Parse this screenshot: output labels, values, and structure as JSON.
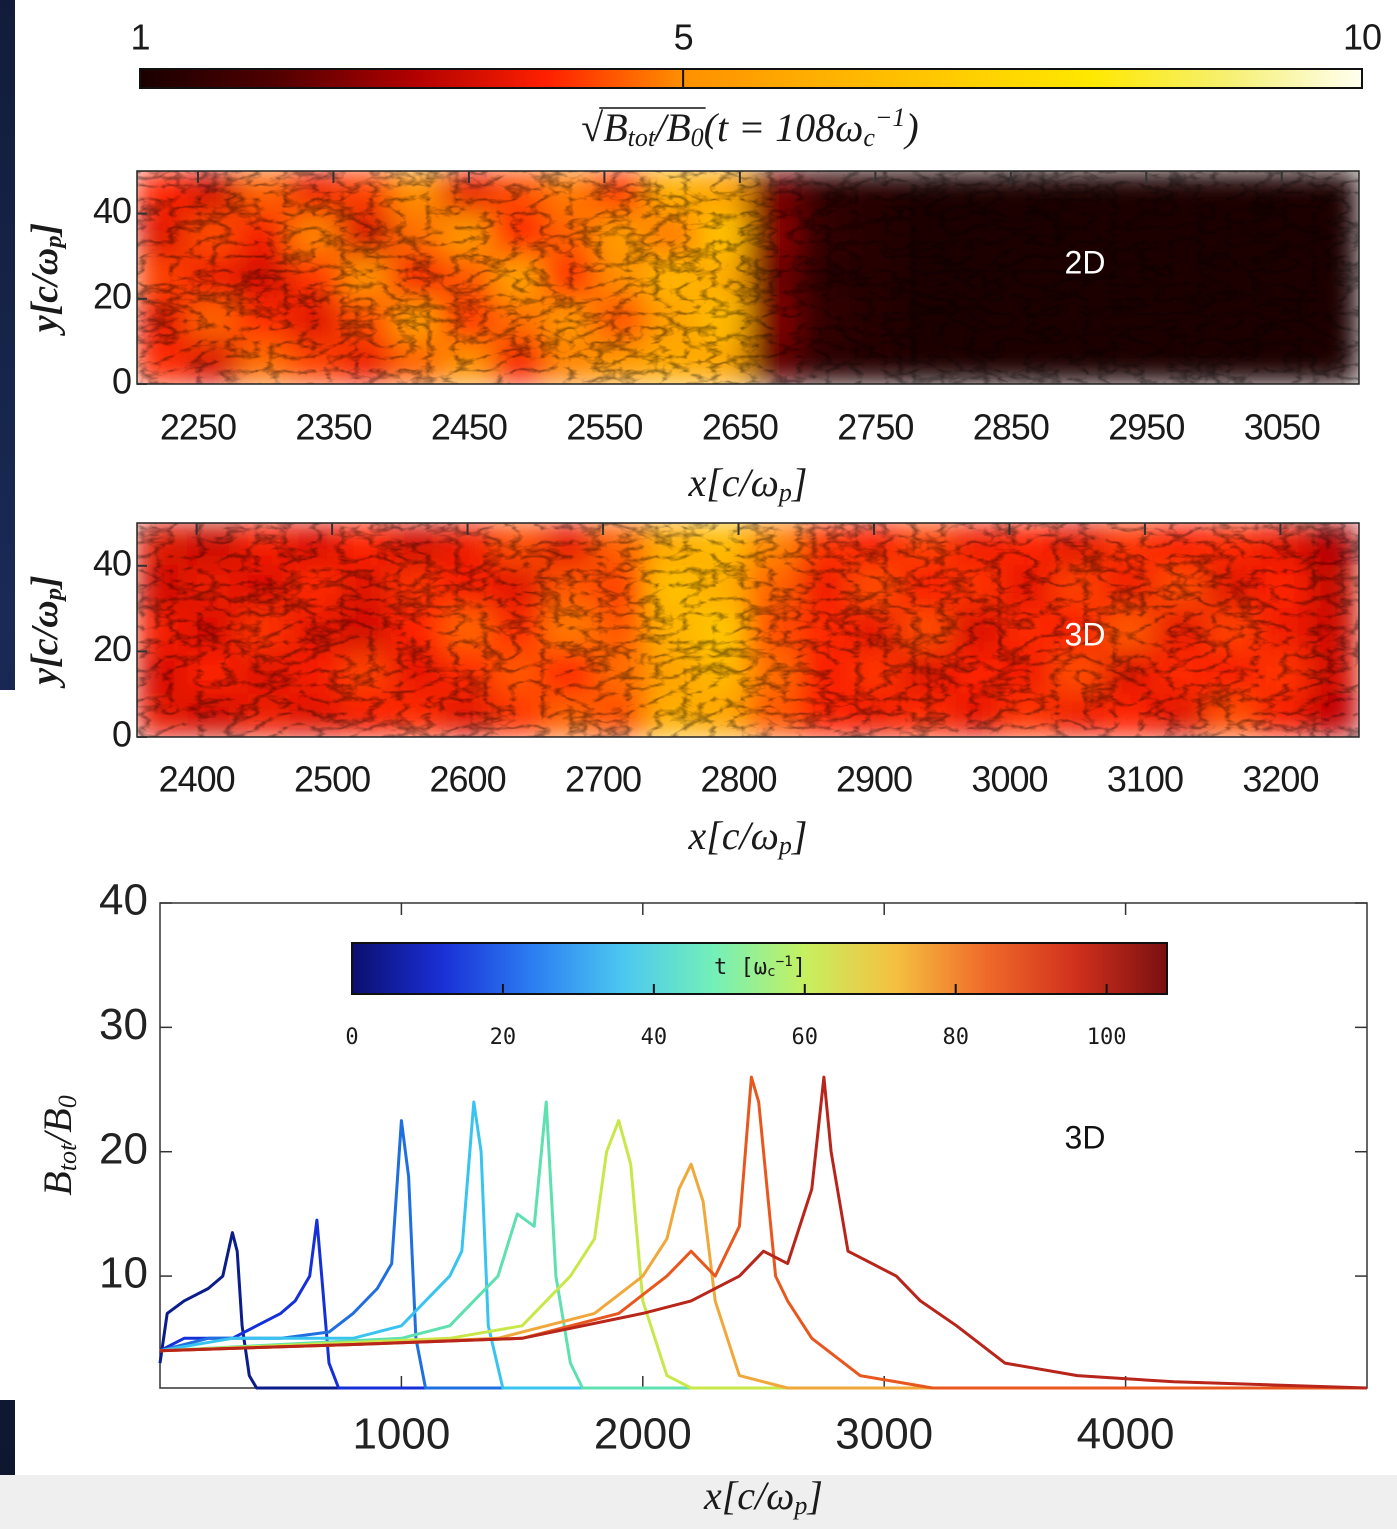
{
  "chart_data": [
    {
      "type": "heatmap",
      "annotation": "2D",
      "xlim": [
        2205,
        3107
      ],
      "ylim": [
        0,
        50
      ],
      "xticks": [
        2250,
        2350,
        2450,
        2550,
        2650,
        2750,
        2850,
        2950,
        3050
      ],
      "yticks": [
        0,
        20,
        40
      ],
      "xlabel": [
        "x[c/ω",
        {
          "sub": "p"
        },
        "]"
      ],
      "ylabel": [
        "y[c/ω",
        {
          "sub": "p"
        },
        "]"
      ],
      "z": [
        [
          4.0,
          3.4,
          4.6,
          3.8,
          4.3,
          5.0,
          3.7,
          4.4,
          4.8,
          4.2,
          6.0,
          5.6,
          2.4,
          1.4,
          1.2,
          1.1,
          1.1,
          1.1,
          1.1,
          1.1,
          1.1,
          1.1,
          1.1,
          1.1
        ],
        [
          3.6,
          4.4,
          3.9,
          4.9,
          3.5,
          4.7,
          5.3,
          4.0,
          4.6,
          5.4,
          4.8,
          6.6,
          2.6,
          1.4,
          1.2,
          1.1,
          1.1,
          1.1,
          1.1,
          1.1,
          1.1,
          1.1,
          1.1,
          1.1
        ],
        [
          4.3,
          3.8,
          3.4,
          4.2,
          5.1,
          3.9,
          4.5,
          5.6,
          4.1,
          5.0,
          6.2,
          5.8,
          2.3,
          1.3,
          1.2,
          1.1,
          1.1,
          1.1,
          1.1,
          1.1,
          1.1,
          1.1,
          1.1,
          1.1
        ],
        [
          3.7,
          4.6,
          4.1,
          3.6,
          4.4,
          5.4,
          4.2,
          4.7,
          5.2,
          4.4,
          5.5,
          6.4,
          2.5,
          1.4,
          1.2,
          1.1,
          1.1,
          1.1,
          1.1,
          1.1,
          1.1,
          1.1,
          1.1,
          1.1
        ],
        [
          4.1,
          3.5,
          4.7,
          4.3,
          3.8,
          4.6,
          5.1,
          3.9,
          4.9,
          5.3,
          5.8,
          5.7,
          2.2,
          1.3,
          1.2,
          1.1,
          1.1,
          1.1,
          1.1,
          1.1,
          1.1,
          1.1,
          1.1,
          1.1
        ]
      ],
      "colorbar": {
        "lim": [
          1,
          10
        ],
        "ticks": [
          1,
          5,
          10
        ],
        "colors": [
          "#1a0000",
          "#500000",
          "#b00000",
          "#ff2000",
          "#ff9000",
          "#ffb000",
          "#ffcc00",
          "#ffe800",
          "#f6f070",
          "#fffff0"
        ],
        "label": [
          "√",
          "B",
          {
            "sub": "tot"
          },
          "/B",
          {
            "sub": "0"
          },
          "(t = 108ω",
          {
            "sub": "c"
          },
          {
            "sup": "−1"
          },
          ")"
        ]
      }
    },
    {
      "type": "heatmap",
      "annotation": "3D",
      "xlim": [
        2356,
        3258
      ],
      "ylim": [
        0,
        50
      ],
      "xticks": [
        2400,
        2500,
        2600,
        2700,
        2800,
        2900,
        3000,
        3100,
        3200
      ],
      "yticks": [
        0,
        20,
        40
      ],
      "xlabel": [
        "x[c/ω",
        {
          "sub": "p"
        },
        "]"
      ],
      "ylabel": [
        "y[c/ω",
        {
          "sub": "p"
        },
        "]"
      ],
      "z": [
        [
          3.6,
          3.3,
          3.9,
          3.5,
          4.0,
          3.4,
          3.8,
          4.4,
          3.7,
          4.6,
          5.8,
          6.4,
          4.9,
          4.2,
          3.9,
          4.3,
          3.8,
          4.0,
          3.6,
          4.2,
          3.9,
          4.1,
          3.7,
          3.0
        ],
        [
          3.4,
          3.8,
          3.5,
          4.1,
          3.6,
          4.2,
          3.9,
          3.6,
          4.5,
          4.3,
          6.6,
          5.9,
          4.6,
          3.8,
          4.4,
          3.9,
          4.2,
          3.7,
          4.3,
          3.8,
          4.4,
          3.6,
          4.0,
          3.3
        ],
        [
          3.9,
          3.5,
          4.2,
          3.7,
          3.4,
          4.0,
          4.6,
          4.1,
          4.8,
          4.5,
          6.1,
          6.8,
          4.4,
          4.1,
          3.7,
          4.4,
          3.5,
          4.1,
          3.9,
          4.5,
          3.7,
          4.3,
          3.8,
          3.4
        ],
        [
          3.5,
          4.0,
          3.6,
          3.9,
          4.3,
          3.7,
          4.1,
          4.5,
          4.0,
          4.7,
          5.6,
          6.3,
          4.7,
          3.9,
          4.2,
          3.6,
          4.0,
          3.8,
          4.4,
          3.6,
          4.1,
          3.9,
          4.2,
          3.5
        ],
        [
          3.7,
          3.4,
          3.8,
          3.6,
          3.9,
          4.1,
          3.6,
          4.2,
          4.6,
          4.4,
          6.0,
          5.7,
          4.5,
          4.0,
          3.8,
          4.1,
          3.7,
          4.2,
          3.8,
          4.0,
          3.6,
          4.4,
          3.9,
          3.2
        ]
      ]
    },
    {
      "type": "line",
      "annotation": "3D",
      "xlim": [
        0,
        5000
      ],
      "ylim": [
        1,
        40
      ],
      "xticks": [
        1000,
        2000,
        3000,
        4000
      ],
      "yticks": [
        10,
        20,
        30,
        40
      ],
      "xlabel": [
        "x[c/ω",
        {
          "sub": "p"
        },
        "]"
      ],
      "ylabel": [
        "B",
        {
          "sub": "tot"
        },
        "/B",
        {
          "sub": "0"
        }
      ],
      "colorbar": {
        "lim": [
          0,
          108
        ],
        "ticks": [
          0,
          20,
          40,
          60,
          80,
          100
        ],
        "colors": [
          "#0a0f6e",
          "#1a2fd6",
          "#2c7ef2",
          "#4cc8f0",
          "#74f0b8",
          "#c6f060",
          "#f5c040",
          "#ef6a2a",
          "#d0301c",
          "#7a1010"
        ],
        "label": [
          "t [ω",
          {
            "sub": "c"
          },
          {
            "sup": "−1"
          },
          "]"
        ]
      },
      "series": [
        {
          "color": "#0b1d8a",
          "x": [
            0,
            30,
            100,
            200,
            260,
            300,
            320,
            340,
            370,
            400,
            5000
          ],
          "values": [
            3,
            7,
            8,
            9,
            10,
            13.5,
            12,
            6,
            2,
            1,
            1
          ]
        },
        {
          "color": "#1530d8",
          "x": [
            0,
            100,
            300,
            400,
            500,
            560,
            620,
            650,
            670,
            700,
            740,
            5000
          ],
          "values": [
            4,
            5,
            5,
            6,
            7,
            8,
            10,
            14.5,
            10,
            3,
            1,
            1
          ]
        },
        {
          "color": "#1f6fe0",
          "x": [
            0,
            200,
            500,
            700,
            800,
            900,
            960,
            1000,
            1030,
            1060,
            1100,
            5000
          ],
          "values": [
            4,
            5,
            5,
            5.5,
            7,
            9,
            11,
            22.5,
            18,
            5,
            1,
            1
          ]
        },
        {
          "color": "#39c4f0",
          "x": [
            0,
            300,
            800,
            1000,
            1100,
            1200,
            1250,
            1300,
            1330,
            1360,
            1420,
            5000
          ],
          "values": [
            4,
            5,
            5,
            6,
            8,
            10,
            12,
            24,
            20,
            6,
            1,
            1
          ]
        },
        {
          "color": "#5ee0b0",
          "x": [
            0,
            500,
            1000,
            1200,
            1300,
            1400,
            1480,
            1550,
            1600,
            1640,
            1700,
            1750,
            5000
          ],
          "values": [
            4,
            4.5,
            5,
            6,
            8,
            10,
            15,
            14,
            24,
            10,
            3,
            1,
            1
          ]
        },
        {
          "color": "#c8e84a",
          "x": [
            0,
            600,
            1200,
            1500,
            1700,
            1800,
            1850,
            1900,
            1950,
            2000,
            2100,
            2200,
            5000
          ],
          "values": [
            4,
            4.5,
            5,
            6,
            10,
            13,
            20,
            22.5,
            19,
            8,
            2,
            1,
            1
          ]
        },
        {
          "color": "#f0a83a",
          "x": [
            0,
            800,
            1400,
            1800,
            2000,
            2100,
            2150,
            2200,
            2250,
            2300,
            2400,
            2600,
            5000
          ],
          "values": [
            4,
            4.5,
            5,
            7,
            10,
            13,
            17,
            19,
            16,
            8,
            2,
            1,
            1
          ]
        },
        {
          "color": "#e8581e",
          "x": [
            0,
            800,
            1500,
            1900,
            2100,
            2200,
            2300,
            2400,
            2450,
            2480,
            2550,
            2600,
            2700,
            2900,
            3200,
            5000
          ],
          "values": [
            4,
            4.5,
            5,
            7,
            10,
            12,
            10,
            14,
            26,
            24,
            10,
            8,
            5,
            2,
            1,
            1
          ]
        },
        {
          "color": "#b8251a",
          "x": [
            0,
            800,
            1500,
            2000,
            2200,
            2400,
            2500,
            2600,
            2700,
            2750,
            2780,
            2850,
            2950,
            3050,
            3150,
            3300,
            3500,
            3800,
            4200,
            5000
          ],
          "values": [
            4,
            4.5,
            5,
            7,
            8,
            10,
            12,
            11,
            17,
            26,
            20,
            12,
            11,
            10,
            8,
            6,
            3,
            2,
            1.5,
            1
          ]
        }
      ]
    }
  ]
}
